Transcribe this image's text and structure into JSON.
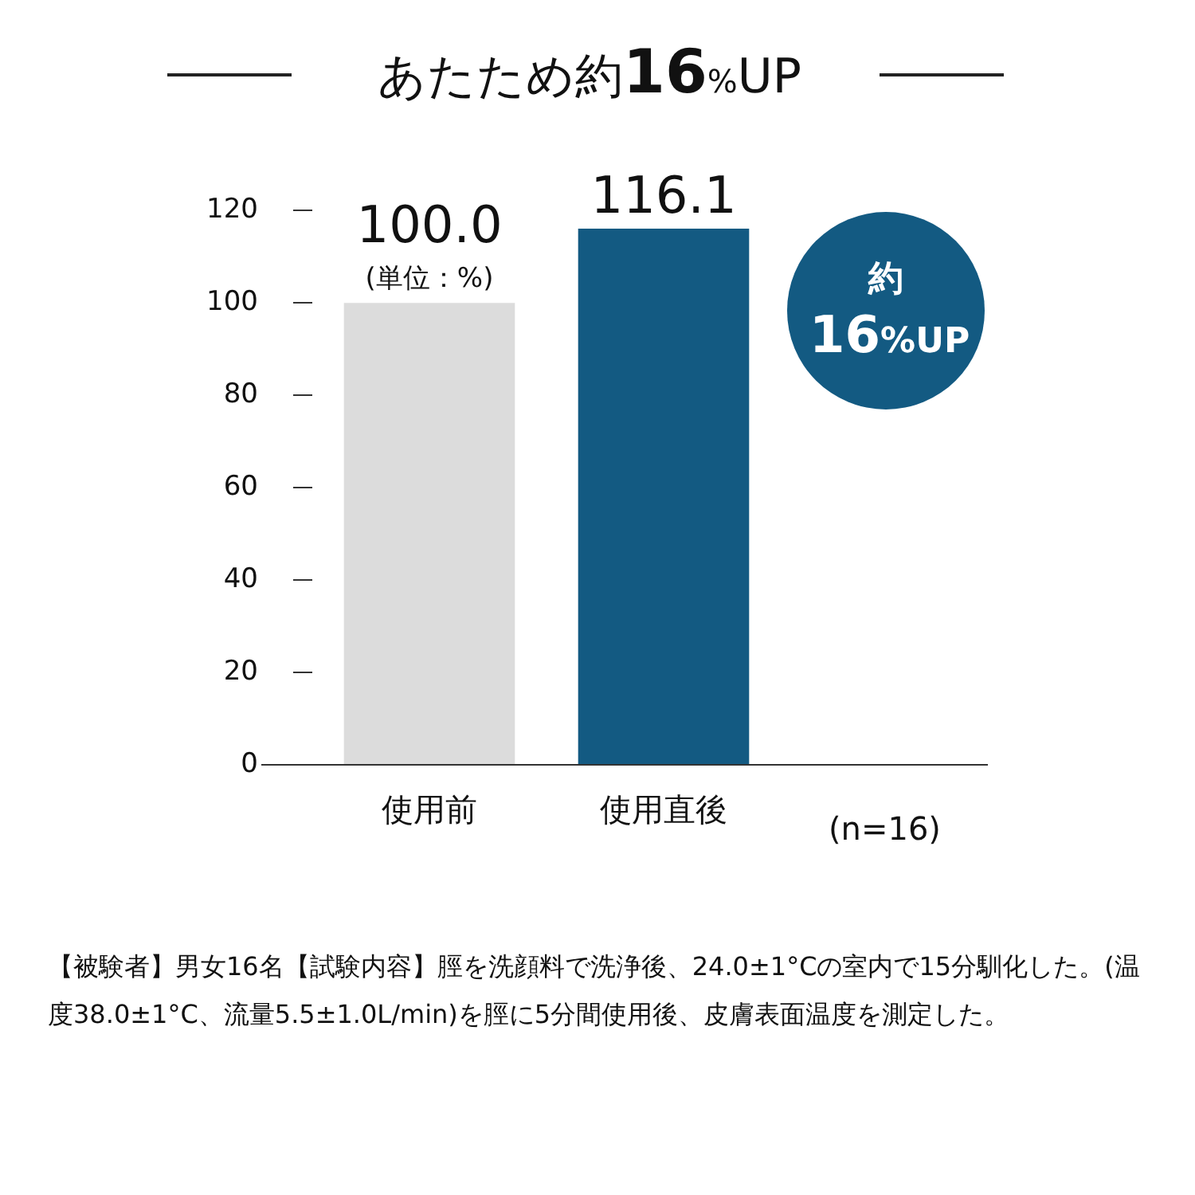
{
  "chart_data": {
    "type": "bar",
    "title": "あたため約16%UP",
    "categories": [
      "使用前",
      "使用直後"
    ],
    "values": [
      100,
      116.1
    ],
    "colors": [
      "#dcdcdc",
      "#135a82"
    ],
    "value_labels": [
      "100.0",
      "116.1"
    ],
    "ylim": [
      0,
      120
    ],
    "yticks": [
      0,
      20,
      40,
      60,
      80,
      100,
      120
    ],
    "grid": false,
    "legend": false,
    "annotations": [
      "(単位：%)",
      "約16%UP",
      "(n=16)",
      "【被験者】男女16名【試験内容】脛を洗顔料で洗浄後、24.0±1°Cの室内で15分馴化した。(温度38.0±1°C、流量5.5±1.0L/min)を脛に5分間使用後、皮膚表面温度を測定した。"
    ]
  }
}
